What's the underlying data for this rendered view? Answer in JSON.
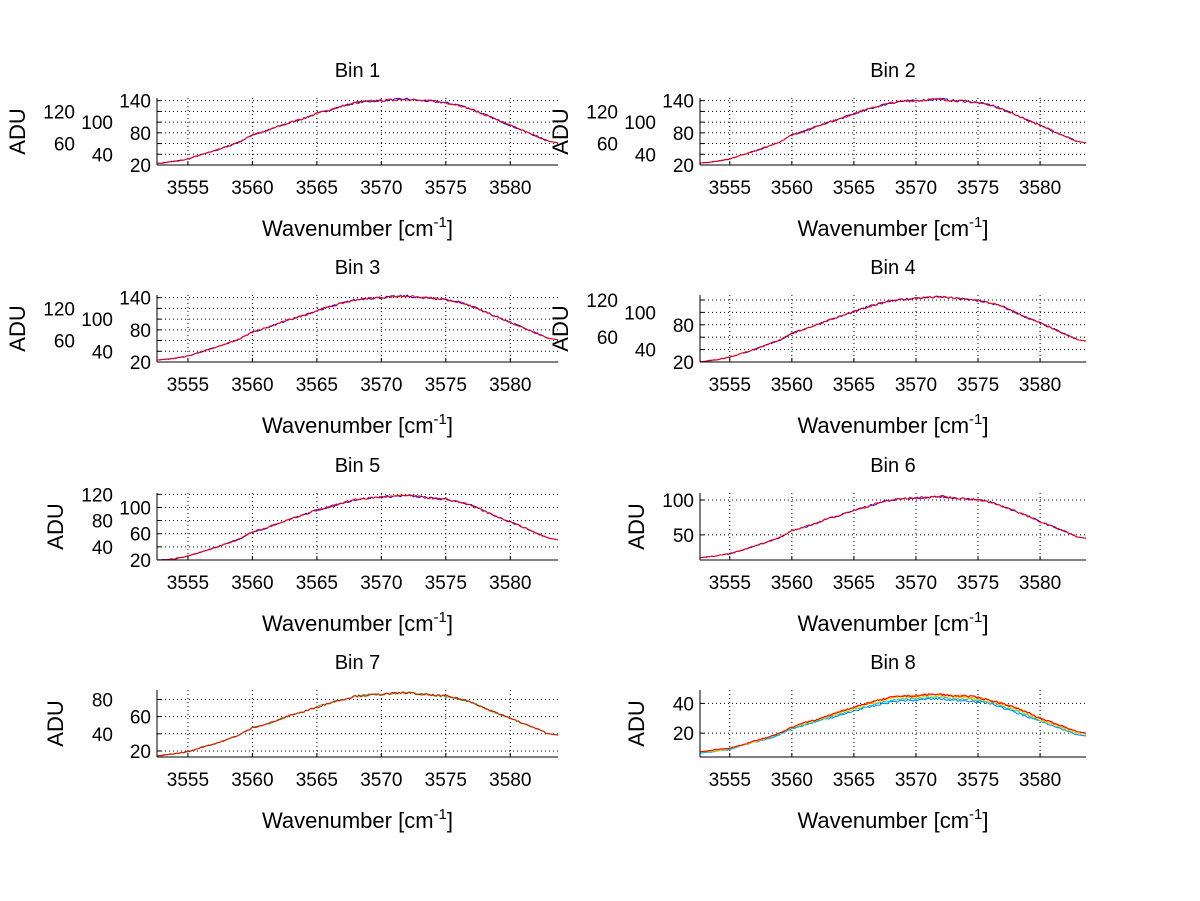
{
  "chart_data": {
    "type": "line",
    "layout": "4x2 subplots",
    "x": [
      3553,
      3554,
      3555,
      3556,
      3557,
      3558,
      3559,
      3560,
      3561,
      3562,
      3563,
      3564,
      3565,
      3566,
      3567,
      3568,
      3569,
      3570,
      3571,
      3572,
      3573,
      3574,
      3575,
      3576,
      3577,
      3578,
      3579,
      3580,
      3581,
      3582,
      3583
    ],
    "xlim": [
      3552.6,
      3583.7
    ],
    "xticks": [
      3555,
      3560,
      3565,
      3570,
      3575,
      3580
    ],
    "xlabel": "Wavenumber [cm",
    "xlabel_sup": "-1",
    "xlabel_end": "]",
    "ylabel": "ADU",
    "grid": true,
    "panels": [
      {
        "title": "Bin 1",
        "ylim": [
          20,
          145
        ],
        "yticks": [
          20,
          40,
          60,
          80,
          100,
          120,
          140
        ],
        "series": [
          {
            "color": "#0000ff",
            "values": [
              24,
              27,
              31,
              39,
              46,
              54,
              63,
              76,
              83,
              92,
              100,
              107,
              116,
              123,
              130,
              136,
              139,
              140,
              142,
              143,
              140,
              139,
              136,
              132,
              124,
              114,
              104,
              94,
              84,
              74,
              64
            ]
          },
          {
            "color": "#ff0000",
            "values": [
              24,
              27,
              31,
              39,
              46,
              54,
              63,
              76,
              83,
              92,
              100,
              107,
              116,
              123,
              130,
              136,
              139,
              140,
              142,
              143,
              140,
              139,
              136,
              132,
              124,
              114,
              104,
              94,
              84,
              74,
              64
            ]
          }
        ]
      },
      {
        "title": "Bin 2",
        "ylim": [
          20,
          145
        ],
        "yticks": [
          20,
          40,
          60,
          80,
          100,
          120,
          140
        ],
        "series": [
          {
            "color": "#0000ff",
            "values": [
              24,
              27,
              31,
              39,
              46,
              54,
              63,
              76,
              83,
              92,
              100,
              107,
              116,
              123,
              130,
              136,
              139,
              140,
              142,
              143,
              140,
              139,
              136,
              132,
              124,
              114,
              104,
              94,
              84,
              74,
              64
            ]
          },
          {
            "color": "#ff0000",
            "values": [
              24,
              27,
              31,
              39,
              46,
              54,
              63,
              76,
              83,
              92,
              100,
              107,
              116,
              123,
              130,
              136,
              139,
              140,
              142,
              143,
              140,
              139,
              136,
              132,
              124,
              114,
              104,
              94,
              84,
              74,
              64
            ]
          }
        ]
      },
      {
        "title": "Bin 3",
        "ylim": [
          20,
          145
        ],
        "yticks": [
          20,
          40,
          60,
          80,
          100,
          120,
          140
        ],
        "series": [
          {
            "color": "#0000ff",
            "values": [
              24,
              27,
              31,
              39,
              46,
              54,
              63,
              76,
              83,
              92,
              100,
              107,
              116,
              123,
              130,
              136,
              139,
              140,
              142,
              143,
              140,
              139,
              136,
              132,
              124,
              114,
              104,
              94,
              84,
              74,
              64
            ]
          },
          {
            "color": "#ff0000",
            "values": [
              24,
              27,
              31,
              39,
              46,
              54,
              63,
              76,
              83,
              92,
              100,
              107,
              116,
              123,
              130,
              136,
              139,
              140,
              142,
              143,
              140,
              139,
              136,
              132,
              124,
              114,
              104,
              94,
              84,
              74,
              64
            ]
          }
        ]
      },
      {
        "title": "Bin 4",
        "ylim": [
          20,
          128
        ],
        "yticks": [
          20,
          40,
          60,
          80,
          100,
          120
        ],
        "series": [
          {
            "color": "#0000ff",
            "values": [
              21,
              24,
              28,
              34,
              40,
              48,
              55,
              66,
              73,
              80,
              88,
              94,
              101,
              108,
              114,
              119,
              121,
              123,
              124,
              125,
              123,
              121,
              119,
              115,
              109,
              100,
              91,
              83,
              74,
              65,
              56
            ]
          },
          {
            "color": "#ff0000",
            "values": [
              21,
              24,
              28,
              34,
              40,
              48,
              55,
              66,
              73,
              80,
              88,
              94,
              101,
              108,
              114,
              119,
              121,
              123,
              124,
              125,
              123,
              121,
              119,
              115,
              109,
              100,
              91,
              83,
              74,
              65,
              56
            ]
          }
        ]
      },
      {
        "title": "Bin 5",
        "ylim": [
          20,
          122
        ],
        "yticks": [
          20,
          40,
          60,
          80,
          100,
          120
        ],
        "series": [
          {
            "color": "#0000ff",
            "values": [
              20,
              22,
              26,
              32,
              38,
              45,
              52,
              63,
              68,
              76,
              83,
              89,
              96,
              101,
              107,
              112,
              114,
              116,
              117,
              118,
              116,
              114,
              112,
              109,
              103,
              94,
              86,
              78,
              70,
              61,
              53
            ]
          },
          {
            "color": "#ff0000",
            "values": [
              20,
              22,
              26,
              32,
              38,
              45,
              52,
              63,
              68,
              76,
              83,
              89,
              96,
              101,
              107,
              112,
              114,
              116,
              117,
              118,
              116,
              114,
              112,
              109,
              103,
              94,
              86,
              78,
              70,
              61,
              53
            ]
          }
        ]
      },
      {
        "title": "Bin 6",
        "ylim": [
          14,
          110
        ],
        "yticks": [
          50,
          100
        ],
        "series": [
          {
            "color": "#0000ff",
            "values": [
              18,
              20,
              23,
              28,
              34,
              40,
              46,
              56,
              61,
              67,
              74,
              79,
              85,
              90,
              96,
              100,
              102,
              103,
              104,
              105,
              103,
              102,
              100,
              97,
              91,
              84,
              77,
              69,
              62,
              55,
              47
            ]
          },
          {
            "color": "#ff0000",
            "values": [
              18,
              20,
              23,
              28,
              34,
              40,
              46,
              56,
              61,
              67,
              74,
              79,
              85,
              90,
              96,
              100,
              102,
              103,
              104,
              105,
              103,
              102,
              100,
              97,
              91,
              84,
              77,
              69,
              62,
              55,
              47
            ]
          }
        ]
      },
      {
        "title": "Bin 7",
        "ylim": [
          13,
          91
        ],
        "yticks": [
          20,
          40,
          60,
          80
        ],
        "series": [
          {
            "color": "#00c000",
            "values": [
              15,
              17,
              19,
              24,
              28,
              33,
              39,
              47,
              51,
              56,
              62,
              66,
              71,
              76,
              80,
              84,
              85,
              86,
              87,
              88,
              86,
              85,
              84,
              81,
              77,
              70,
              64,
              58,
              52,
              46,
              40
            ]
          },
          {
            "color": "#ff0000",
            "values": [
              15,
              17,
              19,
              24,
              28,
              33,
              39,
              47,
              51,
              56,
              62,
              66,
              71,
              76,
              80,
              84,
              85,
              86,
              87,
              88,
              86,
              85,
              84,
              81,
              77,
              70,
              64,
              58,
              52,
              46,
              40
            ]
          }
        ]
      },
      {
        "title": "Bin 8",
        "ylim": [
          4,
          49
        ],
        "yticks": [
          20,
          40
        ],
        "series": [
          {
            "color": "#0080ff",
            "values": [
              7,
              8,
              9,
              12,
              14,
              16,
              19,
              23,
              25,
              28,
              30,
              32,
              35,
              37,
              39,
              41,
              42,
              42,
              43,
              43,
              42,
              42,
              41,
              40,
              37,
              34,
              31,
              28,
              25,
              22,
              19
            ]
          },
          {
            "color": "#00c8c8",
            "values": [
              7,
              8,
              9,
              12,
              14,
              16,
              19,
              23,
              26,
              28,
              31,
              33,
              36,
              38,
              40,
              42,
              43,
              43,
              44,
              44,
              43,
              43,
              42,
              41,
              38,
              35,
              32,
              29,
              26,
              23,
              20
            ]
          },
          {
            "color": "#e0e000",
            "values": [
              8,
              8,
              10,
              12,
              14,
              17,
              20,
              24,
              26,
              29,
              31,
              34,
              36,
              39,
              41,
              43,
              44,
              44,
              45,
              45,
              44,
              44,
              43,
              41,
              39,
              36,
              33,
              29,
              26,
              23,
              20
            ]
          },
          {
            "color": "#ff8000",
            "values": [
              8,
              9,
              10,
              12,
              15,
              17,
              20,
              24,
              27,
              29,
              32,
              35,
              37,
              40,
              42,
              44,
              45,
              45,
              46,
              46,
              45,
              45,
              44,
              42,
              40,
              37,
              34,
              30,
              27,
              24,
              21
            ]
          },
          {
            "color": "#ff0000",
            "values": [
              8,
              9,
              10,
              12,
              15,
              17,
              20,
              24,
              27,
              29,
              32,
              35,
              37,
              40,
              42,
              44,
              45,
              45,
              46,
              46,
              45,
              45,
              44,
              42,
              40,
              37,
              34,
              30,
              27,
              24,
              21
            ]
          }
        ]
      }
    ]
  }
}
